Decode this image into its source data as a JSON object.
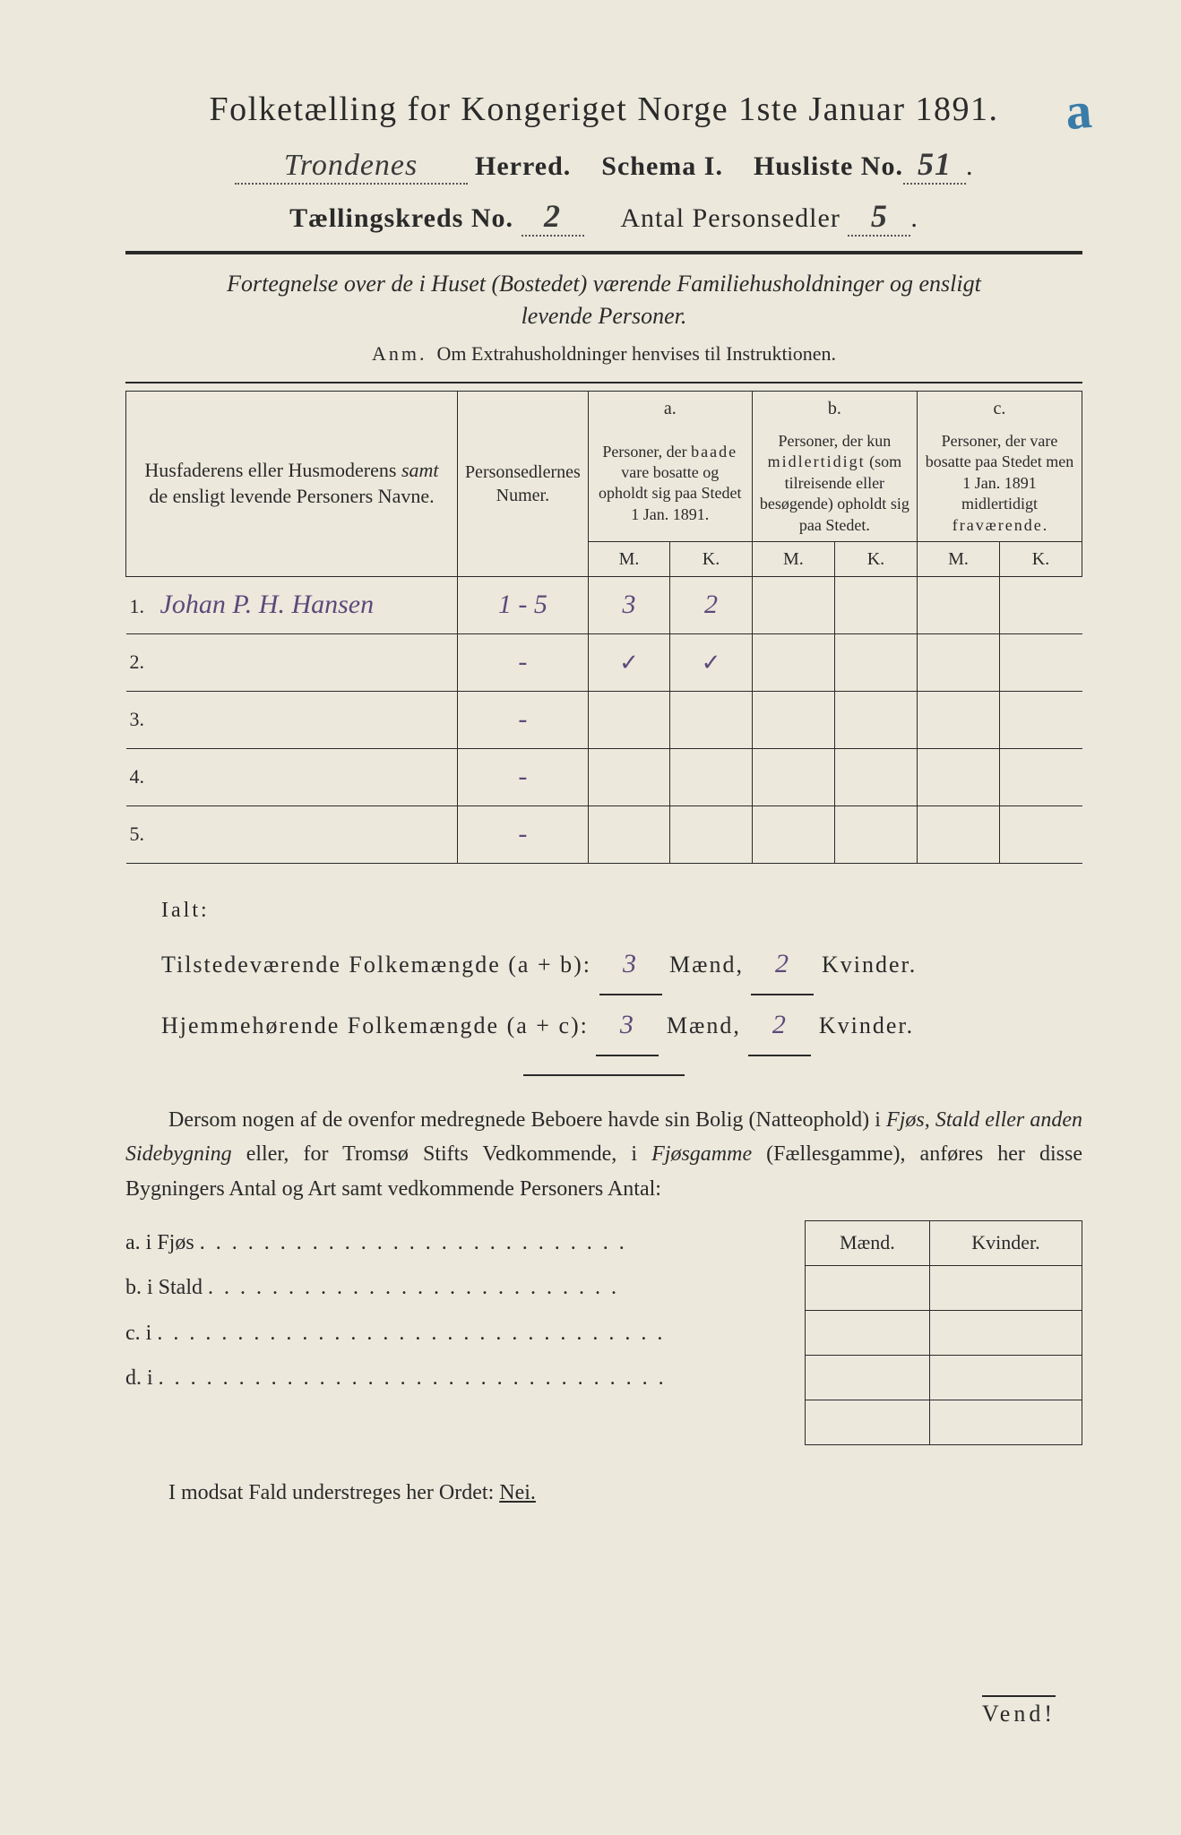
{
  "annotation": "a",
  "title": "Folketælling for Kongeriget Norge 1ste Januar 1891.",
  "header": {
    "herred_value": "Trondenes",
    "herred_label": "Herred.",
    "schema_label": "Schema I.",
    "husliste_label": "Husliste No.",
    "husliste_no": "51",
    "kreds_label": "Tællingskreds No.",
    "kreds_no": "2",
    "sedler_label": "Antal Personsedler",
    "sedler_no": "5"
  },
  "subtitle1": "Fortegnelse over de i Huset (Bostedet) værende Familiehusholdninger og ensligt",
  "subtitle2": "levende Personer.",
  "anm_label": "Anm.",
  "anm_text": "Om Extrahusholdninger henvises til Instruktionen.",
  "columns": {
    "names": "Husfaderens eller Husmoderens samt de ensligt levende Personers Navne.",
    "numer": "Personsedlernes Numer.",
    "a_top": "a.",
    "a": "Personer, der baade vare bosatte og opholdt sig paa Stedet 1 Jan. 1891.",
    "b_top": "b.",
    "b": "Personer, der kun midlertidigt (som tilreisende eller besøgende) opholdt sig paa Stedet.",
    "c_top": "c.",
    "c": "Personer, der vare bosatte paa Stedet men 1 Jan. 1891 midlertidigt fraværende.",
    "m": "M.",
    "k": "K."
  },
  "rows": [
    {
      "n": "1.",
      "name": "Johan P. H. Hansen",
      "numer": "1 - 5",
      "am": "3",
      "ak": "2",
      "bm": "",
      "bk": "",
      "cm": "",
      "ck": ""
    },
    {
      "n": "2.",
      "name": "",
      "numer": "-",
      "am": "✓",
      "ak": "✓",
      "bm": "",
      "bk": "",
      "cm": "",
      "ck": ""
    },
    {
      "n": "3.",
      "name": "",
      "numer": "-",
      "am": "",
      "ak": "",
      "bm": "",
      "bk": "",
      "cm": "",
      "ck": ""
    },
    {
      "n": "4.",
      "name": "",
      "numer": "-",
      "am": "",
      "ak": "",
      "bm": "",
      "bk": "",
      "cm": "",
      "ck": ""
    },
    {
      "n": "5.",
      "name": "",
      "numer": "-",
      "am": "",
      "ak": "",
      "bm": "",
      "bk": "",
      "cm": "",
      "ck": ""
    }
  ],
  "ialt": {
    "label": "Ialt:",
    "tilstede_label": "Tilstedeværende Folkemængde (a + b):",
    "hjemme_label": "Hjemmehørende Folkemængde (a + c):",
    "maend": "Mænd,",
    "kvinder": "Kvinder.",
    "tm": "3",
    "tk": "2",
    "hm": "3",
    "hk": "2"
  },
  "paragraph": "Dersom nogen af de ovenfor medregnede Beboere havde sin Bolig (Natteophold) i Fjøs, Stald eller anden Sidebygning eller, for Tromsø Stifts Vedkommende, i Fjøsgamme (Fællesgamme), anføres her disse Bygningers Antal og Art samt vedkommende Personers Antal:",
  "sidelist": {
    "a": "a.  i     Fjøs",
    "b": "b.  i     Stald",
    "c": "c.  i",
    "d": "d.  i"
  },
  "smallcols": {
    "m": "Mænd.",
    "k": "Kvinder."
  },
  "footer": "I modsat Fald understreges her Ordet:",
  "nei": "Nei.",
  "vend": "Vend!"
}
